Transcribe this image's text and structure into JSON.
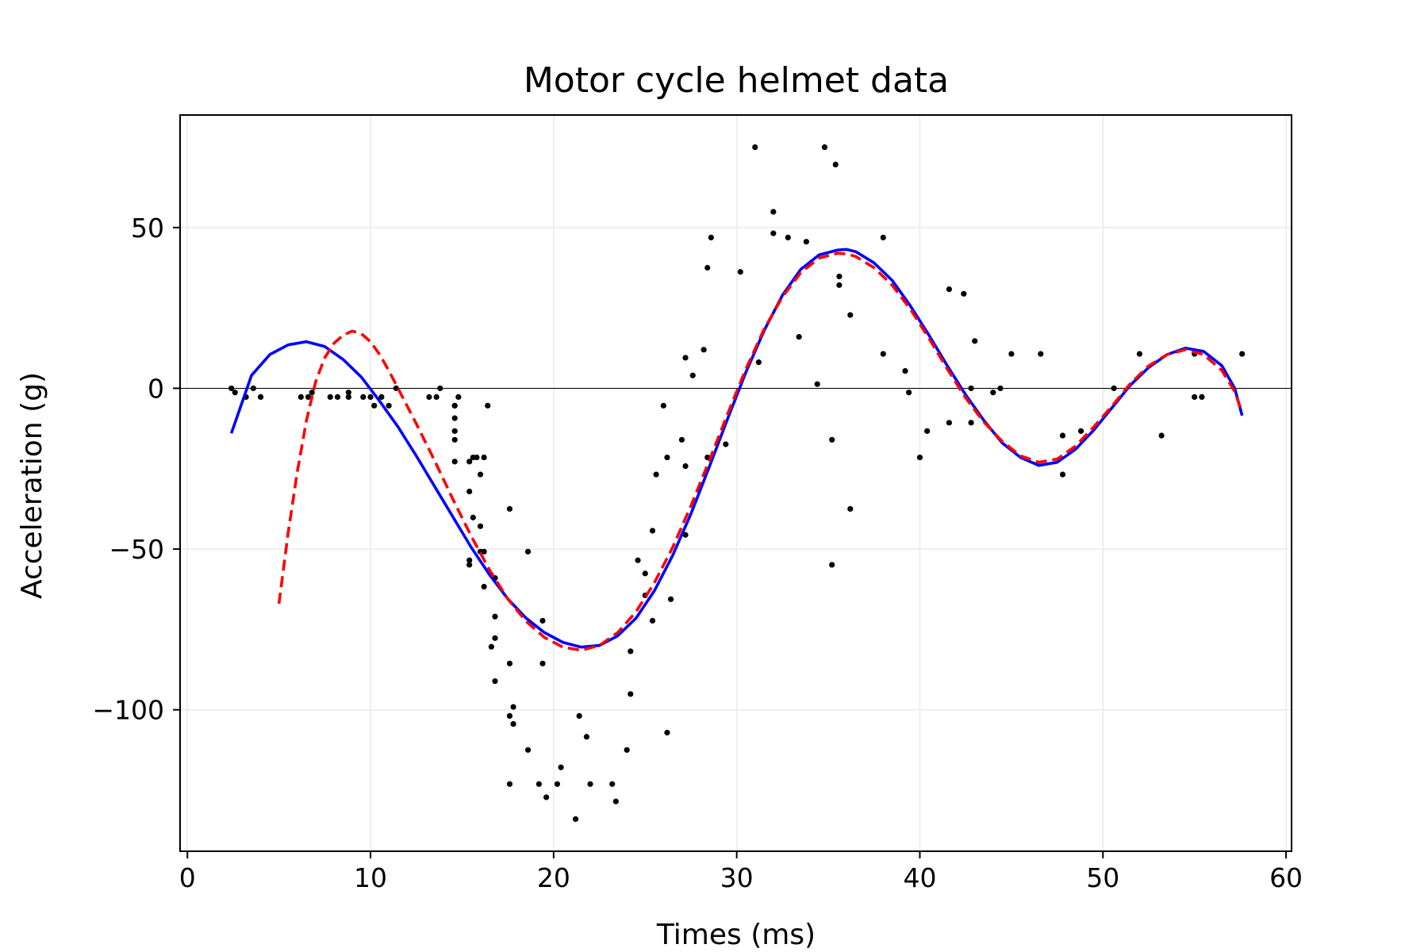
{
  "chart_data": {
    "type": "scatter",
    "title": "Motor cycle helmet data",
    "xlabel": "Times (ms)",
    "ylabel": "Acceleration (g)",
    "xlim": [
      -0.4,
      60.3
    ],
    "ylim": [
      -144,
      85
    ],
    "xticks": [
      0,
      10,
      20,
      30,
      40,
      50,
      60
    ],
    "yticks": [
      50,
      0,
      -50,
      -100
    ],
    "grid": true,
    "zero_line": true,
    "colors": {
      "points": "#000000",
      "fit_solid": "#0000ff",
      "fit_dashed": "#ff0000",
      "grid": "#ebebeb"
    },
    "points": [
      [
        2.4,
        0.0
      ],
      [
        2.6,
        -1.3
      ],
      [
        3.2,
        -2.7
      ],
      [
        3.6,
        0.0
      ],
      [
        4.0,
        -2.7
      ],
      [
        6.2,
        -2.7
      ],
      [
        6.6,
        -2.7
      ],
      [
        6.8,
        -1.3
      ],
      [
        7.8,
        -2.7
      ],
      [
        8.2,
        -2.7
      ],
      [
        8.8,
        -1.3
      ],
      [
        8.8,
        -2.7
      ],
      [
        9.6,
        -2.7
      ],
      [
        10.0,
        -2.7
      ],
      [
        10.2,
        -5.4
      ],
      [
        10.6,
        -2.7
      ],
      [
        11.0,
        -5.4
      ],
      [
        11.4,
        0.0
      ],
      [
        13.2,
        -2.7
      ],
      [
        13.6,
        -2.7
      ],
      [
        13.8,
        0.0
      ],
      [
        14.6,
        -13.3
      ],
      [
        14.6,
        -5.4
      ],
      [
        14.6,
        -5.4
      ],
      [
        14.6,
        -9.3
      ],
      [
        14.6,
        -16.0
      ],
      [
        14.6,
        -22.8
      ],
      [
        14.8,
        -2.7
      ],
      [
        15.4,
        -22.8
      ],
      [
        15.4,
        -32.1
      ],
      [
        15.4,
        -53.5
      ],
      [
        15.4,
        -54.9
      ],
      [
        15.6,
        -40.2
      ],
      [
        15.6,
        -21.5
      ],
      [
        15.8,
        -21.5
      ],
      [
        16.0,
        -50.8
      ],
      [
        16.0,
        -42.9
      ],
      [
        16.0,
        -26.8
      ],
      [
        16.2,
        -21.5
      ],
      [
        16.2,
        -50.8
      ],
      [
        16.2,
        -61.7
      ],
      [
        16.4,
        -5.4
      ],
      [
        16.6,
        -80.4
      ],
      [
        16.8,
        -59.0
      ],
      [
        16.8,
        -71.0
      ],
      [
        16.8,
        -91.1
      ],
      [
        16.8,
        -77.7
      ],
      [
        17.6,
        -37.5
      ],
      [
        17.6,
        -85.6
      ],
      [
        17.6,
        -123.1
      ],
      [
        17.6,
        -101.9
      ],
      [
        17.8,
        -99.1
      ],
      [
        17.8,
        -104.4
      ],
      [
        18.6,
        -112.5
      ],
      [
        18.6,
        -50.8
      ],
      [
        19.2,
        -123.1
      ],
      [
        19.4,
        -85.6
      ],
      [
        19.4,
        -72.3
      ],
      [
        19.6,
        -127.2
      ],
      [
        20.2,
        -123.1
      ],
      [
        20.4,
        -117.9
      ],
      [
        21.2,
        -134.0
      ],
      [
        21.4,
        -101.9
      ],
      [
        21.8,
        -108.4
      ],
      [
        22.0,
        -123.1
      ],
      [
        23.2,
        -123.1
      ],
      [
        23.4,
        -128.5
      ],
      [
        24.0,
        -112.5
      ],
      [
        24.2,
        -95.1
      ],
      [
        24.2,
        -81.8
      ],
      [
        24.6,
        -53.5
      ],
      [
        25.0,
        -64.4
      ],
      [
        25.0,
        -57.6
      ],
      [
        25.4,
        -72.3
      ],
      [
        25.4,
        -44.3
      ],
      [
        25.6,
        -26.8
      ],
      [
        26.0,
        -5.4
      ],
      [
        26.2,
        -107.1
      ],
      [
        26.2,
        -21.5
      ],
      [
        26.4,
        -65.6
      ],
      [
        27.0,
        -16.0
      ],
      [
        27.2,
        -45.6
      ],
      [
        27.2,
        -24.2
      ],
      [
        27.2,
        9.5
      ],
      [
        27.6,
        4.0
      ],
      [
        28.2,
        12.0
      ],
      [
        28.4,
        -21.5
      ],
      [
        28.4,
        37.5
      ],
      [
        28.6,
        46.9
      ],
      [
        29.4,
        -17.4
      ],
      [
        30.2,
        36.2
      ],
      [
        31.0,
        75.0
      ],
      [
        31.2,
        8.1
      ],
      [
        32.0,
        54.9
      ],
      [
        32.0,
        48.2
      ],
      [
        32.8,
        46.9
      ],
      [
        33.4,
        16.0
      ],
      [
        33.8,
        45.6
      ],
      [
        34.4,
        1.3
      ],
      [
        34.8,
        75.0
      ],
      [
        35.2,
        -16.0
      ],
      [
        35.2,
        -54.9
      ],
      [
        35.4,
        69.6
      ],
      [
        35.6,
        34.8
      ],
      [
        35.6,
        32.1
      ],
      [
        36.2,
        -37.5
      ],
      [
        36.2,
        22.8
      ],
      [
        38.0,
        46.9
      ],
      [
        38.0,
        10.7
      ],
      [
        39.2,
        5.4
      ],
      [
        39.4,
        -1.3
      ],
      [
        40.0,
        -21.5
      ],
      [
        40.4,
        -13.3
      ],
      [
        41.6,
        30.8
      ],
      [
        41.6,
        -10.7
      ],
      [
        42.4,
        29.4
      ],
      [
        42.8,
        0.0
      ],
      [
        42.8,
        -10.7
      ],
      [
        43.0,
        14.7
      ],
      [
        44.0,
        -1.3
      ],
      [
        44.4,
        0.0
      ],
      [
        45.0,
        10.7
      ],
      [
        46.6,
        10.7
      ],
      [
        47.8,
        -26.8
      ],
      [
        47.8,
        -14.7
      ],
      [
        48.8,
        -13.3
      ],
      [
        50.6,
        0.0
      ],
      [
        52.0,
        10.7
      ],
      [
        53.2,
        -14.7
      ],
      [
        55.0,
        -2.7
      ],
      [
        55.0,
        10.7
      ],
      [
        55.4,
        -2.7
      ],
      [
        57.6,
        10.7
      ]
    ],
    "fit_solid": [
      [
        2.4,
        -14.0
      ],
      [
        3.5,
        4.0
      ],
      [
        4.5,
        10.5
      ],
      [
        5.5,
        13.5
      ],
      [
        6.5,
        14.5
      ],
      [
        7.5,
        13.0
      ],
      [
        8.5,
        9.0
      ],
      [
        9.5,
        3.5
      ],
      [
        10.5,
        -4.0
      ],
      [
        11.5,
        -12.0
      ],
      [
        12.5,
        -21.0
      ],
      [
        13.5,
        -30.5
      ],
      [
        14.5,
        -40.0
      ],
      [
        15.5,
        -49.5
      ],
      [
        16.5,
        -58.0
      ],
      [
        17.5,
        -65.5
      ],
      [
        18.5,
        -71.5
      ],
      [
        19.5,
        -76.0
      ],
      [
        20.5,
        -79.0
      ],
      [
        21.5,
        -80.5
      ],
      [
        22.5,
        -80.0
      ],
      [
        23.5,
        -77.0
      ],
      [
        24.5,
        -71.5
      ],
      [
        25.5,
        -63.0
      ],
      [
        26.5,
        -52.0
      ],
      [
        27.5,
        -39.0
      ],
      [
        28.5,
        -24.5
      ],
      [
        29.5,
        -9.5
      ],
      [
        30.5,
        5.0
      ],
      [
        31.5,
        18.0
      ],
      [
        32.5,
        29.0
      ],
      [
        33.5,
        37.0
      ],
      [
        34.5,
        41.5
      ],
      [
        35.5,
        43.0
      ],
      [
        36.0,
        43.2
      ],
      [
        36.5,
        42.5
      ],
      [
        37.5,
        39.0
      ],
      [
        38.5,
        33.5
      ],
      [
        39.5,
        25.5
      ],
      [
        40.5,
        16.5
      ],
      [
        41.5,
        7.0
      ],
      [
        42.5,
        -2.0
      ],
      [
        43.5,
        -10.0
      ],
      [
        44.5,
        -17.0
      ],
      [
        45.5,
        -21.5
      ],
      [
        46.5,
        -24.0
      ],
      [
        47.5,
        -23.0
      ],
      [
        48.5,
        -19.0
      ],
      [
        49.5,
        -13.0
      ],
      [
        50.5,
        -6.0
      ],
      [
        51.5,
        1.0
      ],
      [
        52.5,
        6.5
      ],
      [
        53.5,
        10.5
      ],
      [
        54.5,
        12.5
      ],
      [
        55.5,
        11.5
      ],
      [
        56.5,
        7.0
      ],
      [
        57.2,
        0.0
      ],
      [
        57.6,
        -8.5
      ]
    ],
    "fit_dashed": [
      [
        5.0,
        -67.0
      ],
      [
        5.5,
        -45.0
      ],
      [
        6.0,
        -26.0
      ],
      [
        6.5,
        -10.0
      ],
      [
        7.0,
        2.0
      ],
      [
        7.5,
        9.5
      ],
      [
        8.0,
        14.0
      ],
      [
        8.5,
        16.5
      ],
      [
        9.0,
        17.8
      ],
      [
        9.5,
        17.0
      ],
      [
        10.0,
        14.5
      ],
      [
        10.5,
        10.5
      ],
      [
        11.0,
        5.5
      ],
      [
        11.5,
        0.0
      ],
      [
        12.5,
        -11.0
      ],
      [
        13.5,
        -22.5
      ],
      [
        14.5,
        -34.5
      ],
      [
        15.5,
        -46.0
      ],
      [
        16.5,
        -56.5
      ],
      [
        17.5,
        -65.5
      ],
      [
        18.5,
        -72.5
      ],
      [
        19.5,
        -77.5
      ],
      [
        20.5,
        -80.5
      ],
      [
        21.5,
        -81.5
      ],
      [
        22.5,
        -80.0
      ],
      [
        23.5,
        -76.0
      ],
      [
        24.5,
        -69.5
      ],
      [
        25.5,
        -60.5
      ],
      [
        26.5,
        -49.5
      ],
      [
        27.5,
        -36.5
      ],
      [
        28.5,
        -22.5
      ],
      [
        29.5,
        -8.0
      ],
      [
        30.5,
        6.0
      ],
      [
        31.5,
        18.5
      ],
      [
        32.5,
        28.5
      ],
      [
        33.5,
        36.0
      ],
      [
        34.5,
        40.5
      ],
      [
        35.5,
        42.0
      ],
      [
        36.0,
        41.8
      ],
      [
        36.5,
        41.0
      ],
      [
        37.5,
        37.5
      ],
      [
        38.5,
        32.0
      ],
      [
        39.5,
        24.5
      ],
      [
        40.5,
        15.5
      ],
      [
        41.5,
        6.0
      ],
      [
        42.5,
        -3.0
      ],
      [
        43.5,
        -10.5
      ],
      [
        44.5,
        -16.5
      ],
      [
        45.5,
        -21.0
      ],
      [
        46.5,
        -23.0
      ],
      [
        47.5,
        -22.0
      ],
      [
        48.5,
        -18.0
      ],
      [
        49.5,
        -12.0
      ],
      [
        50.5,
        -5.5
      ],
      [
        51.5,
        1.5
      ],
      [
        52.5,
        7.0
      ],
      [
        53.5,
        10.5
      ],
      [
        54.5,
        12.0
      ],
      [
        55.5,
        10.5
      ],
      [
        56.5,
        5.5
      ],
      [
        57.2,
        -1.0
      ],
      [
        57.6,
        -7.5
      ]
    ]
  }
}
